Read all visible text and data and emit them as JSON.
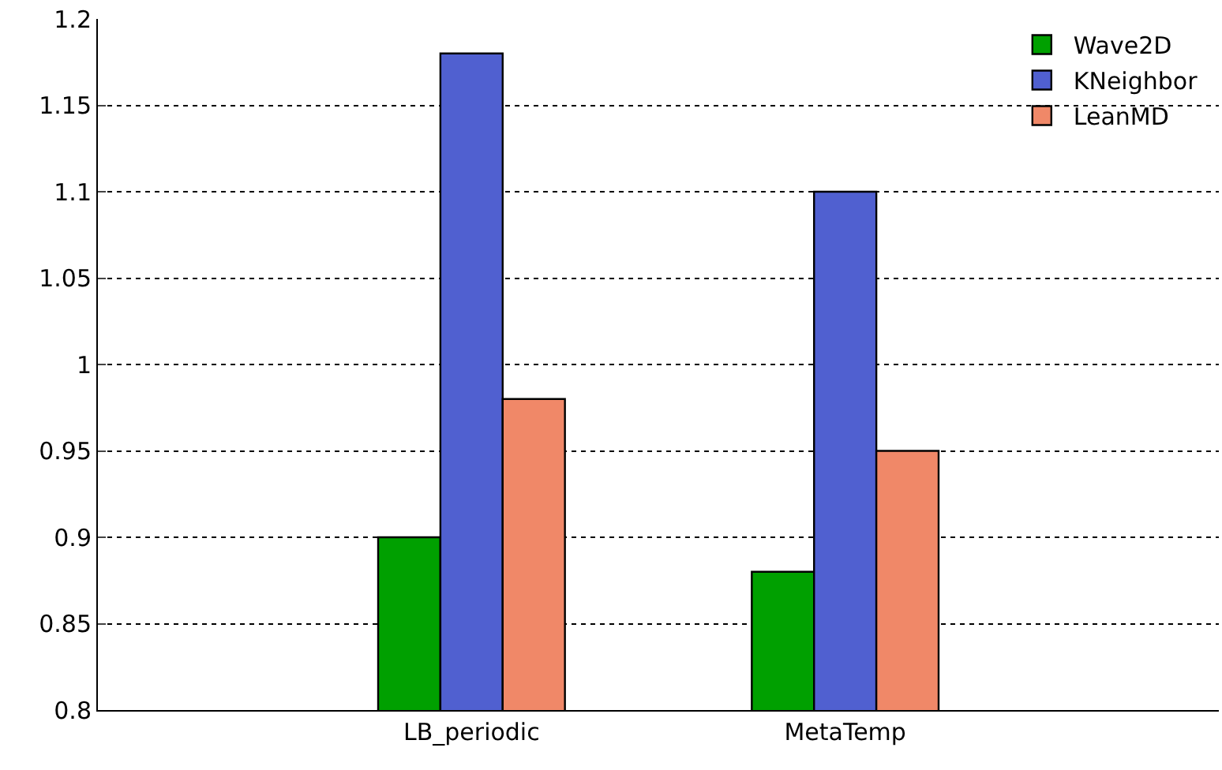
{
  "chart_data": {
    "type": "bar",
    "categories": [
      "LB_periodic",
      "MetaTemp"
    ],
    "series": [
      {
        "name": "Wave2D",
        "color": "#00a000",
        "values": [
          0.9,
          0.88
        ]
      },
      {
        "name": "KNeighbor",
        "color": "#5060d0",
        "values": [
          1.18,
          1.1
        ]
      },
      {
        "name": "LeanMD",
        "color": "#f08868",
        "values": [
          0.98,
          0.95
        ]
      }
    ],
    "ylim": [
      0.8,
      1.2
    ],
    "yticks": [
      0.8,
      0.85,
      0.9,
      0.95,
      1,
      1.05,
      1.1,
      1.15,
      1.2
    ],
    "grid": "y",
    "legend": "top right"
  }
}
